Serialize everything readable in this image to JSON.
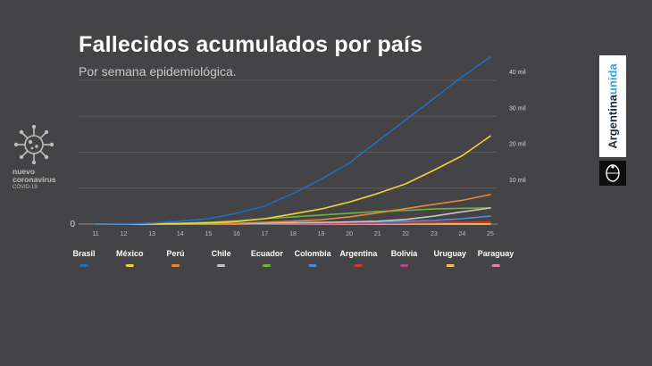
{
  "header": {
    "title": "Fallecidos acumulados por país",
    "subtitle": "Por semana epidemiológica."
  },
  "badge": {
    "line1": "nuevo",
    "line2": "coronavirus",
    "line3": "COVID-19",
    "icon": "coronavirus-icon"
  },
  "brand": {
    "text_main": "Argentina",
    "text_accent": "unida",
    "accent_color": "#32a6d8",
    "seal_icon": "national-seal-icon"
  },
  "chart_data": {
    "type": "line",
    "title": "Fallecidos acumulados por país",
    "subtitle": "Por semana epidemiológica.",
    "x": [
      11,
      12,
      13,
      14,
      15,
      16,
      17,
      18,
      19,
      20,
      21,
      22,
      23,
      24,
      25
    ],
    "ylim": [
      0,
      40000
    ],
    "y_ticks": [
      {
        "value": 0,
        "label": "0"
      },
      {
        "value": 10000,
        "label": "10 mil"
      },
      {
        "value": 20000,
        "label": "20 mil"
      },
      {
        "value": 30000,
        "label": "30 mil"
      },
      {
        "value": 40000,
        "label": "40 mil"
      }
    ],
    "grid": true,
    "legend_position": "bottom",
    "series": [
      {
        "name": "Brasil",
        "color": "#1f6fc5",
        "values": [
          0,
          50,
          300,
          800,
          1500,
          3000,
          5000,
          8500,
          12500,
          17000,
          23000,
          29000,
          35000,
          41000,
          46500
        ]
      },
      {
        "name": "México",
        "color": "#f0d33a",
        "values": [
          0,
          10,
          50,
          120,
          300,
          700,
          1500,
          2800,
          4200,
          6100,
          8500,
          11200,
          15000,
          19000,
          24500
        ]
      },
      {
        "name": "Perú",
        "color": "#e8893a",
        "values": [
          0,
          5,
          20,
          50,
          100,
          200,
          500,
          800,
          1200,
          2000,
          3100,
          4300,
          5500,
          6600,
          8200
        ]
      },
      {
        "name": "Chile",
        "color": "#c5c5c5",
        "values": [
          0,
          0,
          10,
          30,
          70,
          150,
          250,
          350,
          450,
          600,
          800,
          1300,
          2200,
          3400,
          4500
        ]
      },
      {
        "name": "Ecuador",
        "color": "#6db33f",
        "values": [
          0,
          20,
          100,
          250,
          500,
          900,
          1500,
          2000,
          2500,
          3000,
          3500,
          3800,
          4200,
          4400,
          4500
        ]
      },
      {
        "name": "Colombia",
        "color": "#4a90d9",
        "values": [
          0,
          0,
          10,
          30,
          80,
          130,
          200,
          300,
          400,
          500,
          600,
          800,
          1000,
          1500,
          2200
        ]
      },
      {
        "name": "Argentina",
        "color": "#d9332f",
        "values": [
          0,
          0,
          10,
          30,
          60,
          100,
          150,
          200,
          250,
          300,
          350,
          400,
          450,
          500,
          550
        ]
      },
      {
        "name": "Bolivia",
        "color": "#b5478f",
        "values": [
          0,
          0,
          5,
          10,
          20,
          40,
          60,
          90,
          130,
          180,
          230,
          300,
          400,
          500,
          600
        ]
      },
      {
        "name": "Uruguay",
        "color": "#f2c14e",
        "values": [
          0,
          0,
          5,
          10,
          10,
          15,
          15,
          20,
          20,
          20,
          20,
          20,
          20,
          20,
          22
        ]
      },
      {
        "name": "Paraguay",
        "color": "#e77fb3",
        "values": [
          0,
          0,
          2,
          3,
          5,
          5,
          8,
          10,
          11,
          11,
          11,
          12,
          13,
          13,
          14
        ]
      }
    ]
  }
}
